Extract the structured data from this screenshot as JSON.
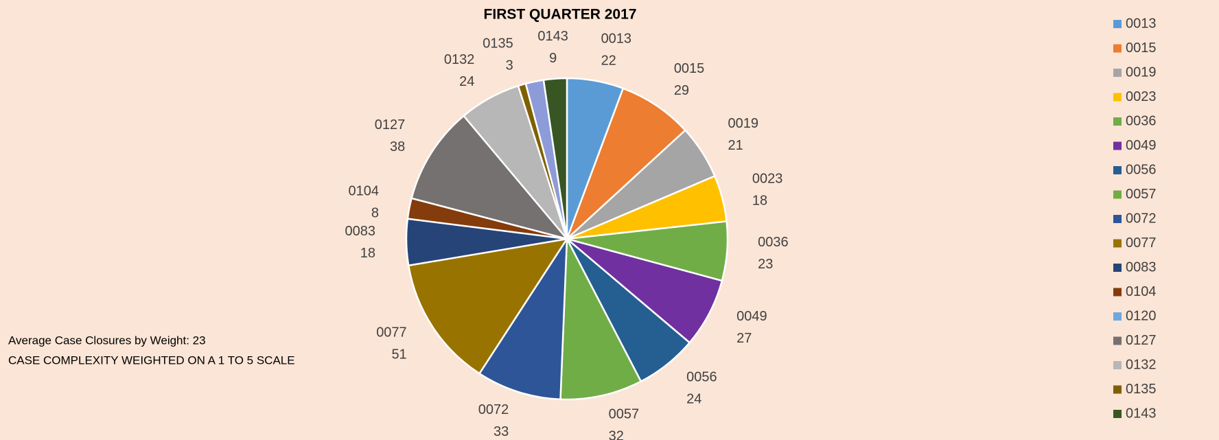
{
  "chart_data": {
    "type": "pie",
    "title": "FIRST QUARTER 2017",
    "categories": [
      "0013",
      "0015",
      "0019",
      "0023",
      "0036",
      "0049",
      "0056",
      "0057",
      "0072",
      "0077",
      "0083",
      "0104",
      "0120",
      "0127",
      "0132",
      "0135",
      null,
      "0143"
    ],
    "values": [
      22,
      29,
      21,
      18,
      23,
      27,
      24,
      32,
      33,
      51,
      18,
      8,
      null,
      38,
      24,
      3,
      7,
      9
    ],
    "colors": [
      "#5b9bd5",
      "#ed7d31",
      "#a5a5a5",
      "#ffc000",
      "#70ad47",
      "#7030a0",
      "#255e91",
      "#70ad47",
      "#2e5597",
      "#997300",
      "#264478",
      "#843c0c",
      "#6fa8dc",
      "#767171",
      "#b7b7b7",
      "#7f6000",
      "#8e9bd9",
      "#375623"
    ],
    "annotations": [
      "Average Case Closures by Weight: 23",
      "CASE COMPLEXITY WEIGHTED ON A 1 TO 5 SCALE"
    ],
    "legend": "right"
  }
}
